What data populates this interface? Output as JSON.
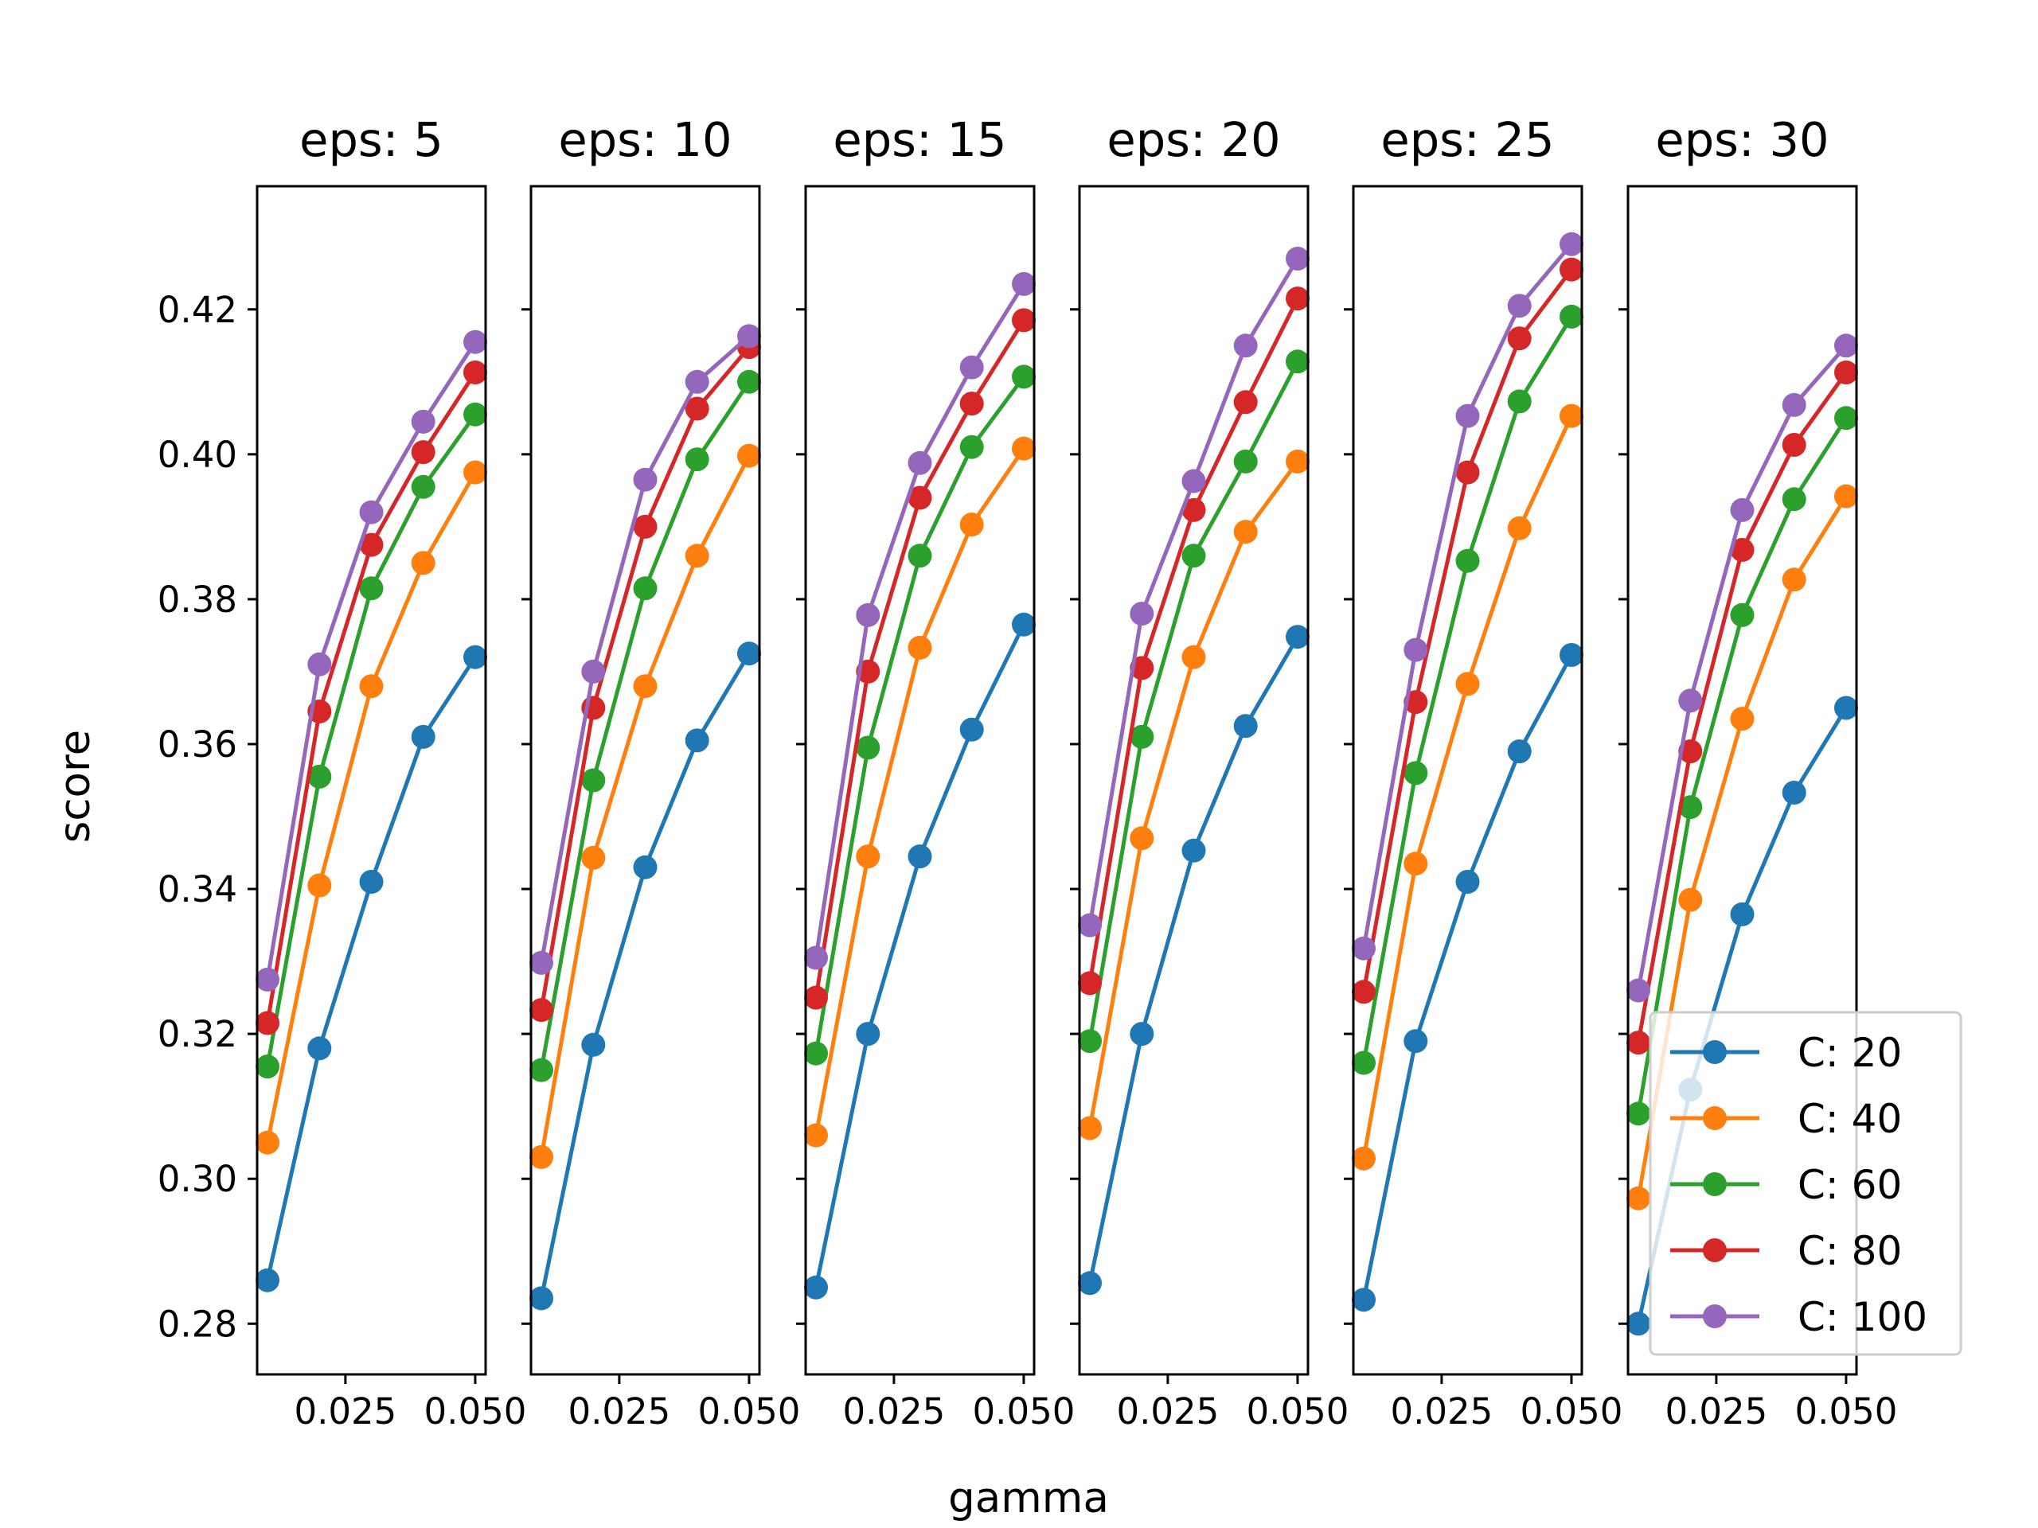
{
  "chart_data": {
    "type": "line",
    "xlabel": "gamma",
    "ylabel": "score",
    "ylim": [
      0.273,
      0.437
    ],
    "xlim": [
      0.008,
      0.052
    ],
    "x": [
      0.01,
      0.02,
      0.03,
      0.04,
      0.05
    ],
    "x_ticks": [
      0.025,
      0.05
    ],
    "x_tick_labels": [
      "0.025",
      "0.050"
    ],
    "y_ticks": [
      0.28,
      0.3,
      0.32,
      0.34,
      0.36,
      0.38,
      0.4,
      0.42
    ],
    "y_tick_labels": [
      "0.28",
      "0.30",
      "0.32",
      "0.34",
      "0.36",
      "0.38",
      "0.40",
      "0.42"
    ],
    "grid": false,
    "legend_placement": "lower-right",
    "series_styles": [
      {
        "label": "C: 20",
        "color": "#1f77b4"
      },
      {
        "label": "C: 40",
        "color": "#ff7f0e"
      },
      {
        "label": "C: 60",
        "color": "#2ca02c"
      },
      {
        "label": "C: 80",
        "color": "#d62728"
      },
      {
        "label": "C: 100",
        "color": "#9467bd"
      }
    ],
    "panels": [
      {
        "title": "eps: 5",
        "series": [
          {
            "name": "C: 20",
            "values": [
              0.286,
              0.318,
              0.341,
              0.361,
              0.372
            ]
          },
          {
            "name": "C: 40",
            "values": [
              0.305,
              0.3405,
              0.368,
              0.385,
              0.3975
            ]
          },
          {
            "name": "C: 60",
            "values": [
              0.3155,
              0.3555,
              0.3815,
              0.3955,
              0.4055
            ]
          },
          {
            "name": "C: 80",
            "values": [
              0.3215,
              0.3645,
              0.3875,
              0.4003,
              0.4113
            ]
          },
          {
            "name": "C: 100",
            "values": [
              0.3275,
              0.371,
              0.392,
              0.4045,
              0.4155
            ]
          }
        ]
      },
      {
        "title": "eps: 10",
        "series": [
          {
            "name": "C: 20",
            "values": [
              0.2835,
              0.3185,
              0.343,
              0.3605,
              0.3725
            ]
          },
          {
            "name": "C: 40",
            "values": [
              0.303,
              0.3443,
              0.368,
              0.386,
              0.3998
            ]
          },
          {
            "name": "C: 60",
            "values": [
              0.315,
              0.355,
              0.3815,
              0.3993,
              0.41
            ]
          },
          {
            "name": "C: 80",
            "values": [
              0.3233,
              0.365,
              0.39,
              0.4063,
              0.4148
            ]
          },
          {
            "name": "C: 100",
            "values": [
              0.3298,
              0.37,
              0.3965,
              0.41,
              0.4163
            ]
          }
        ]
      },
      {
        "title": "eps: 15",
        "series": [
          {
            "name": "C: 20",
            "values": [
              0.285,
              0.32,
              0.3445,
              0.362,
              0.3765
            ]
          },
          {
            "name": "C: 40",
            "values": [
              0.306,
              0.3445,
              0.3733,
              0.3903,
              0.4008
            ]
          },
          {
            "name": "C: 60",
            "values": [
              0.3173,
              0.3595,
              0.386,
              0.401,
              0.4107
            ]
          },
          {
            "name": "C: 80",
            "values": [
              0.325,
              0.37,
              0.394,
              0.407,
              0.4185
            ]
          },
          {
            "name": "C: 100",
            "values": [
              0.3305,
              0.3778,
              0.3988,
              0.412,
              0.4235
            ]
          }
        ]
      },
      {
        "title": "eps: 20",
        "series": [
          {
            "name": "C: 20",
            "values": [
              0.2856,
              0.32,
              0.3453,
              0.3625,
              0.3748
            ]
          },
          {
            "name": "C: 40",
            "values": [
              0.307,
              0.347,
              0.372,
              0.3893,
              0.399
            ]
          },
          {
            "name": "C: 60",
            "values": [
              0.319,
              0.361,
              0.386,
              0.399,
              0.4128
            ]
          },
          {
            "name": "C: 80",
            "values": [
              0.327,
              0.3705,
              0.3923,
              0.4072,
              0.4215
            ]
          },
          {
            "name": "C: 100",
            "values": [
              0.335,
              0.378,
              0.3963,
              0.415,
              0.427
            ]
          }
        ]
      },
      {
        "title": "eps: 25",
        "series": [
          {
            "name": "C: 20",
            "values": [
              0.2833,
              0.319,
              0.341,
              0.359,
              0.3723
            ]
          },
          {
            "name": "C: 40",
            "values": [
              0.3028,
              0.3435,
              0.3683,
              0.3898,
              0.4053
            ]
          },
          {
            "name": "C: 60",
            "values": [
              0.316,
              0.356,
              0.3853,
              0.4073,
              0.419
            ]
          },
          {
            "name": "C: 80",
            "values": [
              0.3258,
              0.3658,
              0.3975,
              0.416,
              0.4255
            ]
          },
          {
            "name": "C: 100",
            "values": [
              0.3318,
              0.373,
              0.4053,
              0.4205,
              0.429
            ]
          }
        ]
      },
      {
        "title": "eps: 30",
        "series": [
          {
            "name": "C: 20",
            "values": [
              0.28,
              0.3123,
              0.3365,
              0.3533,
              0.365
            ]
          },
          {
            "name": "C: 40",
            "values": [
              0.2973,
              0.3385,
              0.3635,
              0.3827,
              0.3942
            ]
          },
          {
            "name": "C: 60",
            "values": [
              0.309,
              0.3513,
              0.3778,
              0.3938,
              0.405
            ]
          },
          {
            "name": "C: 80",
            "values": [
              0.3188,
              0.359,
              0.3868,
              0.4013,
              0.4113
            ]
          },
          {
            "name": "C: 100",
            "values": [
              0.326,
              0.366,
              0.3923,
              0.4068,
              0.415
            ]
          }
        ]
      }
    ]
  }
}
